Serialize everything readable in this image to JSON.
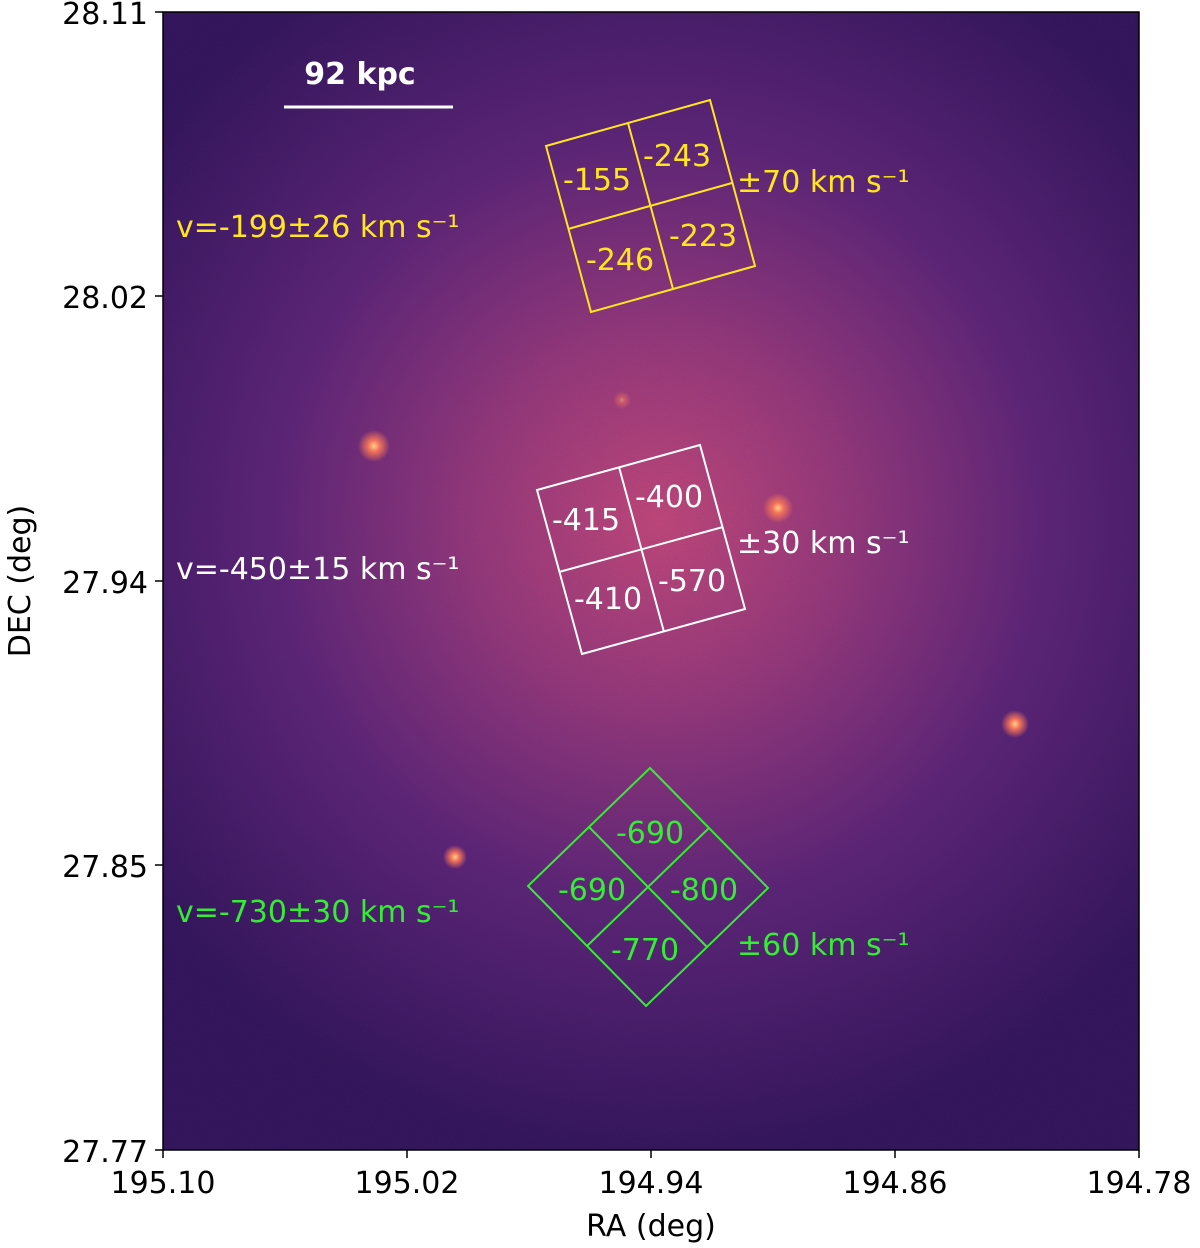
{
  "x_axis": {
    "label": "RA (deg)",
    "ticks": [
      "195.10",
      "195.02",
      "194.94",
      "194.86",
      "194.78"
    ]
  },
  "y_axis": {
    "label": "DEC (deg)",
    "ticks": [
      "28.11",
      "28.02",
      "27.94",
      "27.85",
      "27.77"
    ]
  },
  "scale_bar": {
    "label": "92 kpc"
  },
  "regions": {
    "yellow": {
      "color": "#ffe61e",
      "cells": [
        "-155",
        "-243",
        "-246",
        "-223"
      ],
      "velocity": "v=-199±26 km s⁻¹",
      "error": "±70 km s⁻¹"
    },
    "white": {
      "color": "#ffffff",
      "cells": [
        "-415",
        "-400",
        "-410",
        "-570"
      ],
      "velocity": "v=-450±15 km s⁻¹",
      "error": "±30 km s⁻¹"
    },
    "green": {
      "color": "#33ee33",
      "cells": [
        "-690",
        "-690",
        "-800",
        "-770"
      ],
      "velocity": "v=-730±30 km s⁻¹",
      "error": "±60 km s⁻¹"
    }
  },
  "colormap": "magma"
}
